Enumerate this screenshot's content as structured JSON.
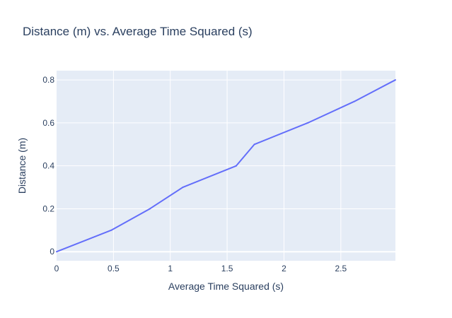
{
  "chart_data": {
    "type": "line",
    "title": "Distance (m) vs. Average Time Squared (s)",
    "xlabel": "Average Time Squared (s)",
    "ylabel": "Distance (m)",
    "xlim": [
      0,
      2.98
    ],
    "ylim": [
      -0.042,
      0.843
    ],
    "x_ticks": [
      0,
      0.5,
      1,
      1.5,
      2,
      2.5
    ],
    "x_tick_labels": [
      "0",
      "0.5",
      "1",
      "1.5",
      "2",
      "2.5"
    ],
    "y_ticks": [
      0,
      0.2,
      0.4,
      0.6,
      0.8
    ],
    "y_tick_labels": [
      "0",
      "0.2",
      "0.4",
      "0.6",
      "0.8"
    ],
    "grid": true,
    "series": [
      {
        "x": [
          0,
          0.48,
          0.82,
          1.11,
          1.58,
          1.74,
          2.21,
          2.62,
          2.98
        ],
        "y": [
          0,
          0.1,
          0.2,
          0.3,
          0.4,
          0.5,
          0.6,
          0.7,
          0.8
        ]
      }
    ],
    "colors": {
      "line": "#636efa",
      "plot_bg": "#e5ecf6",
      "grid": "#ffffff",
      "text": "#2a3f5f"
    }
  }
}
